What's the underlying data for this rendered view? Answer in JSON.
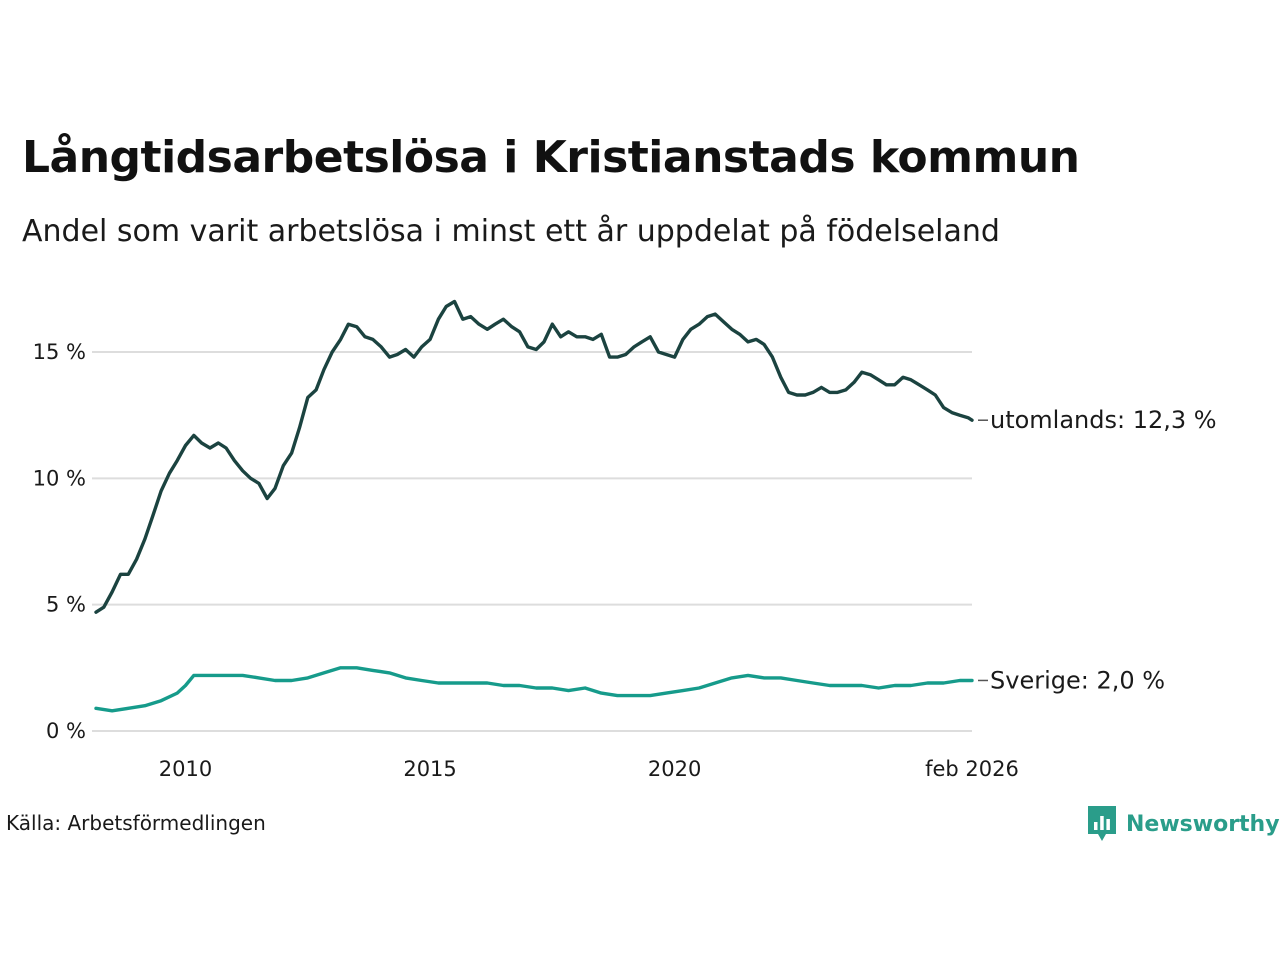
{
  "colors": {
    "utomlands": "#1b4340",
    "sverige": "#169b8b",
    "grid": "#dddddd",
    "brand": "#2a9d8a"
  },
  "brand": {
    "icon": "newsworthy-logo-icon",
    "name": "Newsworthy"
  },
  "source": "Källa: Arbetsförmedlingen",
  "chart_data": {
    "type": "line",
    "title": "Långtidsarbetslösa i Kristianstads kommun",
    "subtitle": "Andel som varit arbetslösa i minst ett år uppdelat på födelseland",
    "xlabel": "",
    "ylabel": "",
    "xlim": [
      2008.17,
      2026.08
    ],
    "ylim": [
      0,
      17.5
    ],
    "grid": true,
    "y_ticks": [
      0,
      5,
      10,
      15
    ],
    "y_tick_labels": [
      "0 %",
      "5 %",
      "10 %",
      "15 %"
    ],
    "x_ticks": [
      2010,
      2015,
      2020,
      2026.08
    ],
    "x_tick_labels": [
      "2010",
      "2015",
      "2020",
      "feb 2026"
    ],
    "series": [
      {
        "name": "utomlands",
        "label": "utomlands: 12,3 %",
        "x": [
          2008.17,
          2008.33,
          2008.5,
          2008.67,
          2008.83,
          2009.0,
          2009.17,
          2009.33,
          2009.5,
          2009.67,
          2009.83,
          2010.0,
          2010.17,
          2010.33,
          2010.5,
          2010.67,
          2010.83,
          2011.0,
          2011.17,
          2011.33,
          2011.5,
          2011.67,
          2011.83,
          2012.0,
          2012.17,
          2012.33,
          2012.5,
          2012.67,
          2012.83,
          2013.0,
          2013.17,
          2013.33,
          2013.5,
          2013.67,
          2013.83,
          2014.0,
          2014.17,
          2014.33,
          2014.5,
          2014.67,
          2014.83,
          2015.0,
          2015.17,
          2015.33,
          2015.5,
          2015.67,
          2015.83,
          2016.0,
          2016.17,
          2016.33,
          2016.5,
          2016.67,
          2016.83,
          2017.0,
          2017.17,
          2017.33,
          2017.5,
          2017.67,
          2017.83,
          2018.0,
          2018.17,
          2018.33,
          2018.5,
          2018.67,
          2018.83,
          2019.0,
          2019.17,
          2019.33,
          2019.5,
          2019.67,
          2019.83,
          2020.0,
          2020.17,
          2020.33,
          2020.5,
          2020.67,
          2020.83,
          2021.0,
          2021.17,
          2021.33,
          2021.5,
          2021.67,
          2021.83,
          2022.0,
          2022.17,
          2022.33,
          2022.5,
          2022.67,
          2022.83,
          2023.0,
          2023.17,
          2023.33,
          2023.5,
          2023.67,
          2023.83,
          2024.0,
          2024.17,
          2024.33,
          2024.5,
          2024.67,
          2024.83,
          2025.0,
          2025.17,
          2025.33,
          2025.5,
          2025.67,
          2025.83,
          2026.0,
          2026.08
        ],
        "values": [
          4.7,
          4.9,
          5.5,
          6.2,
          6.2,
          6.8,
          7.6,
          8.5,
          9.5,
          10.2,
          10.7,
          11.3,
          11.7,
          11.4,
          11.2,
          11.4,
          11.2,
          10.7,
          10.3,
          10.0,
          9.8,
          9.2,
          9.6,
          10.5,
          11.0,
          12.0,
          13.2,
          13.5,
          14.3,
          15.0,
          15.5,
          16.1,
          16.0,
          15.6,
          15.5,
          15.2,
          14.8,
          14.9,
          15.1,
          14.8,
          15.2,
          15.5,
          16.3,
          16.8,
          17.0,
          16.3,
          16.4,
          16.1,
          15.9,
          16.1,
          16.3,
          16.0,
          15.8,
          15.2,
          15.1,
          15.4,
          16.1,
          15.6,
          15.8,
          15.6,
          15.6,
          15.5,
          15.7,
          14.8,
          14.8,
          14.9,
          15.2,
          15.4,
          15.6,
          15.0,
          14.9,
          14.8,
          15.5,
          15.9,
          16.1,
          16.4,
          16.5,
          16.2,
          15.9,
          15.7,
          15.4,
          15.5,
          15.3,
          14.8,
          14.0,
          13.4,
          13.3,
          13.3,
          13.4,
          13.6,
          13.4,
          13.4,
          13.5,
          13.8,
          14.2,
          14.1,
          13.9,
          13.7,
          13.7,
          14.0,
          13.9,
          13.7,
          13.5,
          13.3,
          12.8,
          12.6,
          12.5,
          12.4,
          12.3
        ]
      },
      {
        "name": "sverige",
        "label": "Sverige:  2,0 %",
        "x": [
          2008.17,
          2008.5,
          2008.83,
          2009.17,
          2009.5,
          2009.83,
          2010.0,
          2010.17,
          2010.5,
          2010.83,
          2011.17,
          2011.5,
          2011.83,
          2012.17,
          2012.5,
          2012.83,
          2013.17,
          2013.5,
          2013.83,
          2014.17,
          2014.5,
          2014.83,
          2015.17,
          2015.5,
          2015.83,
          2016.17,
          2016.5,
          2016.83,
          2017.17,
          2017.5,
          2017.83,
          2018.17,
          2018.5,
          2018.83,
          2019.17,
          2019.5,
          2019.83,
          2020.17,
          2020.5,
          2020.83,
          2021.17,
          2021.5,
          2021.83,
          2022.17,
          2022.5,
          2022.83,
          2023.17,
          2023.5,
          2023.83,
          2024.17,
          2024.5,
          2024.83,
          2025.17,
          2025.5,
          2025.83,
          2026.08
        ],
        "values": [
          0.9,
          0.8,
          0.9,
          1.0,
          1.2,
          1.5,
          1.8,
          2.2,
          2.2,
          2.2,
          2.2,
          2.1,
          2.0,
          2.0,
          2.1,
          2.3,
          2.5,
          2.5,
          2.4,
          2.3,
          2.1,
          2.0,
          1.9,
          1.9,
          1.9,
          1.9,
          1.8,
          1.8,
          1.7,
          1.7,
          1.6,
          1.7,
          1.5,
          1.4,
          1.4,
          1.4,
          1.5,
          1.6,
          1.7,
          1.9,
          2.1,
          2.2,
          2.1,
          2.1,
          2.0,
          1.9,
          1.8,
          1.8,
          1.8,
          1.7,
          1.8,
          1.8,
          1.9,
          1.9,
          2.0,
          2.0
        ]
      }
    ]
  }
}
